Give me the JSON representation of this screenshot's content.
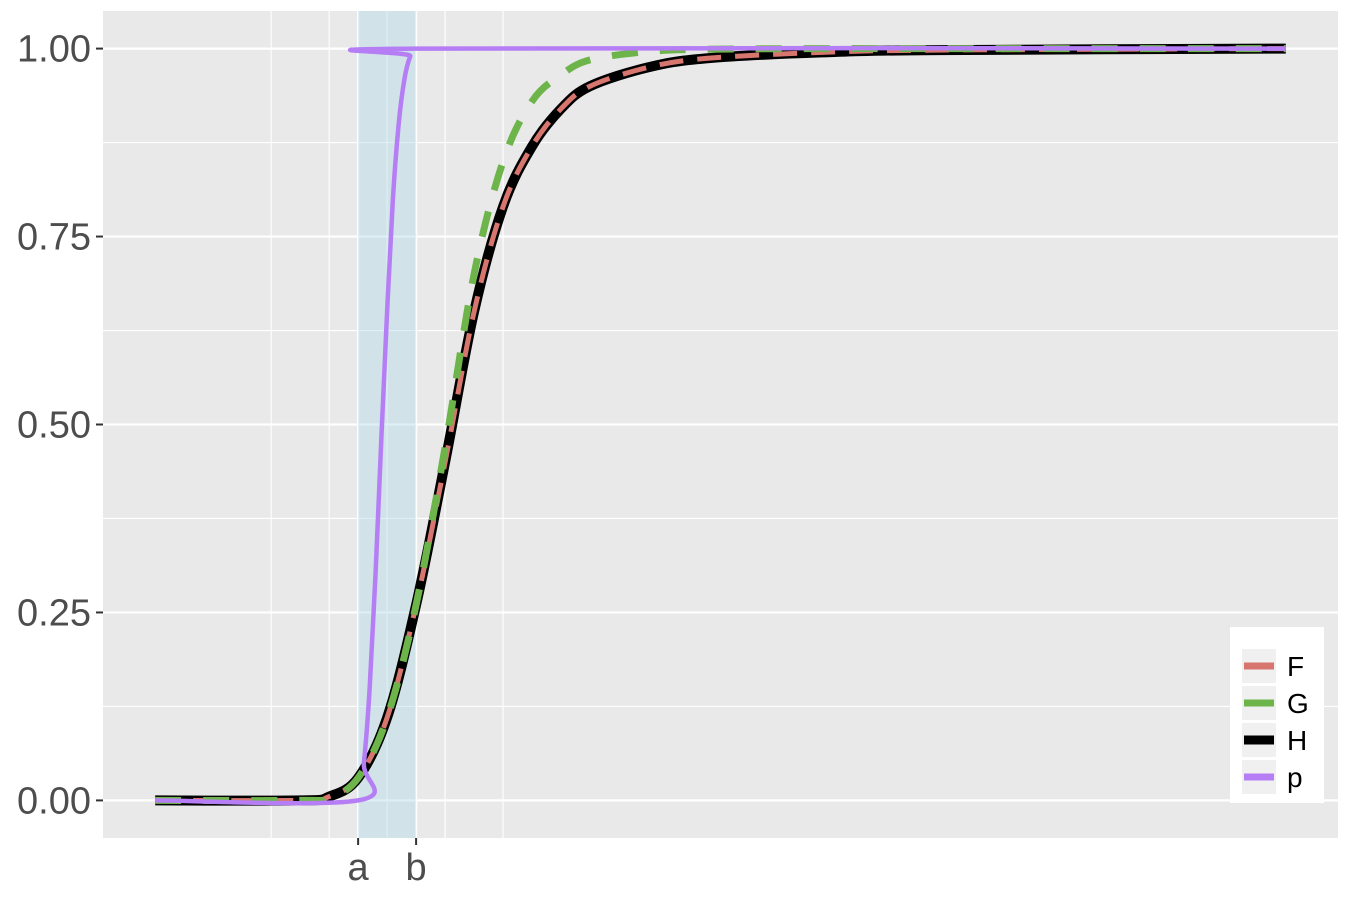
{
  "chart_data": {
    "type": "line",
    "title": "",
    "xlabel": "",
    "ylabel": "",
    "x_ticks": [
      {
        "x": 0,
        "label": "a"
      },
      {
        "x": 1,
        "label": "b"
      }
    ],
    "y_ticks": [
      {
        "y": 0.0,
        "label": "0.00"
      },
      {
        "y": 0.25,
        "label": "0.25"
      },
      {
        "y": 0.5,
        "label": "0.50"
      },
      {
        "y": 0.75,
        "label": "0.75"
      },
      {
        "y": 1.0,
        "label": "1.00"
      }
    ],
    "xlim": [
      -4.4,
      16.9
    ],
    "ylim": [
      -0.05,
      1.05
    ],
    "shaded_region": {
      "x_from": 0,
      "x_to": 1,
      "color": "#add8e6"
    },
    "grid": true,
    "legend_position": "bottom-right",
    "series": [
      {
        "name": "F",
        "color": "#d7766f",
        "style": "solid",
        "x": [
          -3.5,
          -1.0,
          -0.5,
          0.0,
          0.5,
          1.0,
          1.5,
          2.0,
          2.5,
          3.0,
          3.5,
          4.0,
          5.0,
          6.0,
          8.0,
          10.0,
          16.0
        ],
        "y": [
          0.0,
          0.0,
          0.005,
          0.03,
          0.11,
          0.26,
          0.45,
          0.65,
          0.79,
          0.87,
          0.92,
          0.95,
          0.975,
          0.987,
          0.995,
          0.998,
          1.0
        ]
      },
      {
        "name": "G",
        "color": "#6db54b",
        "style": "dashed",
        "x": [
          -3.5,
          -1.0,
          -0.5,
          0.0,
          0.5,
          1.0,
          1.5,
          2.0,
          2.5,
          3.0,
          3.5,
          4.0,
          5.0,
          6.0,
          8.0,
          10.0,
          16.0
        ],
        "y": [
          0.0,
          0.0,
          0.003,
          0.03,
          0.11,
          0.26,
          0.47,
          0.7,
          0.85,
          0.93,
          0.965,
          0.985,
          0.996,
          0.999,
          1.0,
          1.0,
          1.0
        ]
      },
      {
        "name": "H",
        "color": "#000000",
        "style": "solid",
        "x": [
          -3.5,
          -1.0,
          -0.5,
          0.0,
          0.5,
          1.0,
          1.5,
          2.0,
          2.5,
          3.0,
          3.5,
          4.0,
          5.0,
          6.0,
          8.0,
          10.0,
          16.0
        ],
        "y": [
          0.0,
          0.0,
          0.005,
          0.03,
          0.11,
          0.26,
          0.45,
          0.65,
          0.79,
          0.87,
          0.92,
          0.95,
          0.975,
          0.987,
          0.995,
          0.998,
          1.0
        ]
      },
      {
        "name": "p",
        "color": "#b57ef5",
        "style": "solid",
        "x": [
          -3.5,
          0.0,
          0.1,
          0.2,
          0.3,
          0.4,
          0.5,
          0.6,
          0.7,
          0.8,
          0.9,
          1.0,
          16.0
        ],
        "y": [
          0.0,
          0.0,
          0.05,
          0.15,
          0.3,
          0.48,
          0.65,
          0.8,
          0.9,
          0.96,
          0.99,
          1.0,
          1.0
        ]
      }
    ]
  }
}
